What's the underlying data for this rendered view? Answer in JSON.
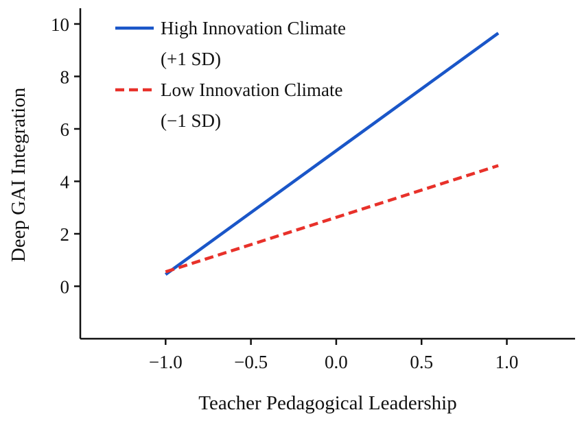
{
  "chart_data": {
    "type": "line",
    "title": "",
    "xlabel": "Teacher Pedagogical Leadership",
    "ylabel": "Deep GAI Integration",
    "xlim": [
      -1.5,
      1.4
    ],
    "ylim": [
      -2,
      10.6
    ],
    "x_ticks": [
      -1.0,
      -0.5,
      0.0,
      0.5,
      1.0
    ],
    "x_tick_labels": [
      "−1.0",
      "−0.5",
      "0.0",
      "0.5",
      "1.0"
    ],
    "y_ticks": [
      0,
      2,
      4,
      6,
      8,
      10
    ],
    "y_tick_labels": [
      "0",
      "2",
      "4",
      "6",
      "8",
      "10"
    ],
    "grid": false,
    "legend_position": "top-left",
    "series": [
      {
        "name_line1": "High Innovation Climate",
        "name_line2": "(+1 SD)",
        "color": "#1a56c8",
        "style": "solid",
        "x": [
          -1.0,
          0.95
        ],
        "y": [
          0.45,
          9.65
        ]
      },
      {
        "name_line1": "Low Innovation Climate",
        "name_line2": "(−1 SD)",
        "color": "#e8312a",
        "style": "dashed",
        "x": [
          -1.0,
          0.95
        ],
        "y": [
          0.55,
          4.6
        ]
      }
    ]
  }
}
